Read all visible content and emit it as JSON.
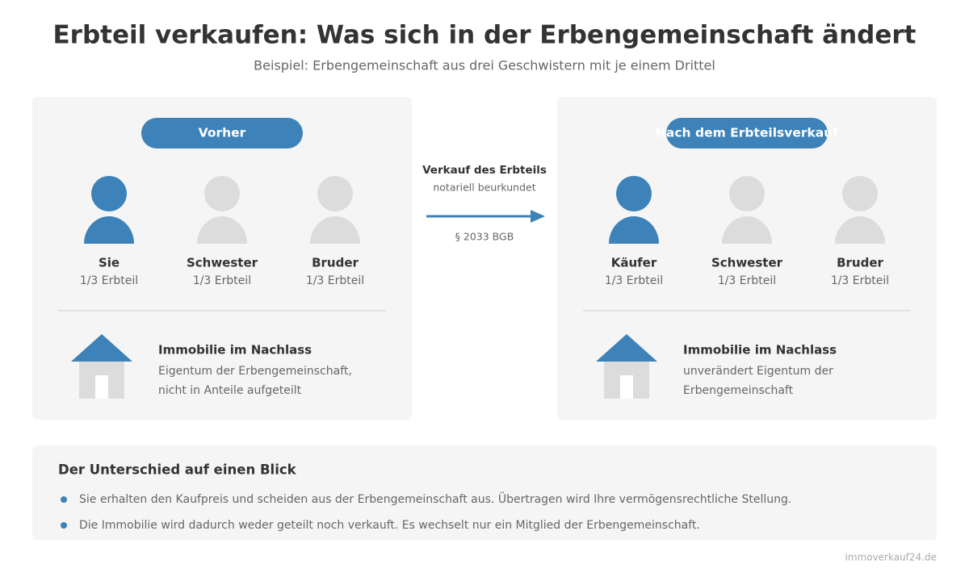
{
  "header": {
    "title": "Erbteil verkaufen: Was sich in der Erbengemeinschaft ändert",
    "subtitle": "Beispiel: Erbengemeinschaft aus drei Geschwistern mit je einem Drittel"
  },
  "panels": [
    {
      "badge": "Vorher",
      "persons": [
        {
          "name": "Sie",
          "share": "1/3 Erbteil"
        },
        {
          "name": "Schwester",
          "share": "1/3 Erbteil"
        },
        {
          "name": "Bruder",
          "share": "1/3 Erbteil"
        }
      ],
      "property": {
        "title": "Immobilie im Nachlass",
        "lines": [
          "Eigentum der Erbengemeinschaft,",
          "nicht in Anteile aufgeteilt"
        ]
      }
    },
    {
      "badge": "Nach dem Erbteilsverkauf",
      "persons": [
        {
          "name": "Käufer",
          "share": "1/3 Erbteil"
        },
        {
          "name": "Schwester",
          "share": "1/3 Erbteil"
        },
        {
          "name": "Bruder",
          "share": "1/3 Erbteil"
        }
      ],
      "property": {
        "title": "Immobilie im Nachlass",
        "lines": [
          "unverändert Eigentum der",
          "Erbengemeinschaft"
        ]
      }
    }
  ],
  "transfer": {
    "title": "Verkauf des Erbteils",
    "subtitle": "notariell beurkundet",
    "law": "§ 2033 BGB"
  },
  "summary": {
    "title": "Der Unterschied auf einen Blick",
    "items": [
      "Sie erhalten den Kaufpreis und scheiden aus der Erbengemeinschaft aus. Übertragen wird Ihre vermögensrechtliche Stellung.",
      "Die Immobilie wird dadurch weder geteilt noch verkauft. Es wechselt nur ein Mitglied der Erbengemeinschaft."
    ]
  },
  "footer": "immoverkauf24.de"
}
